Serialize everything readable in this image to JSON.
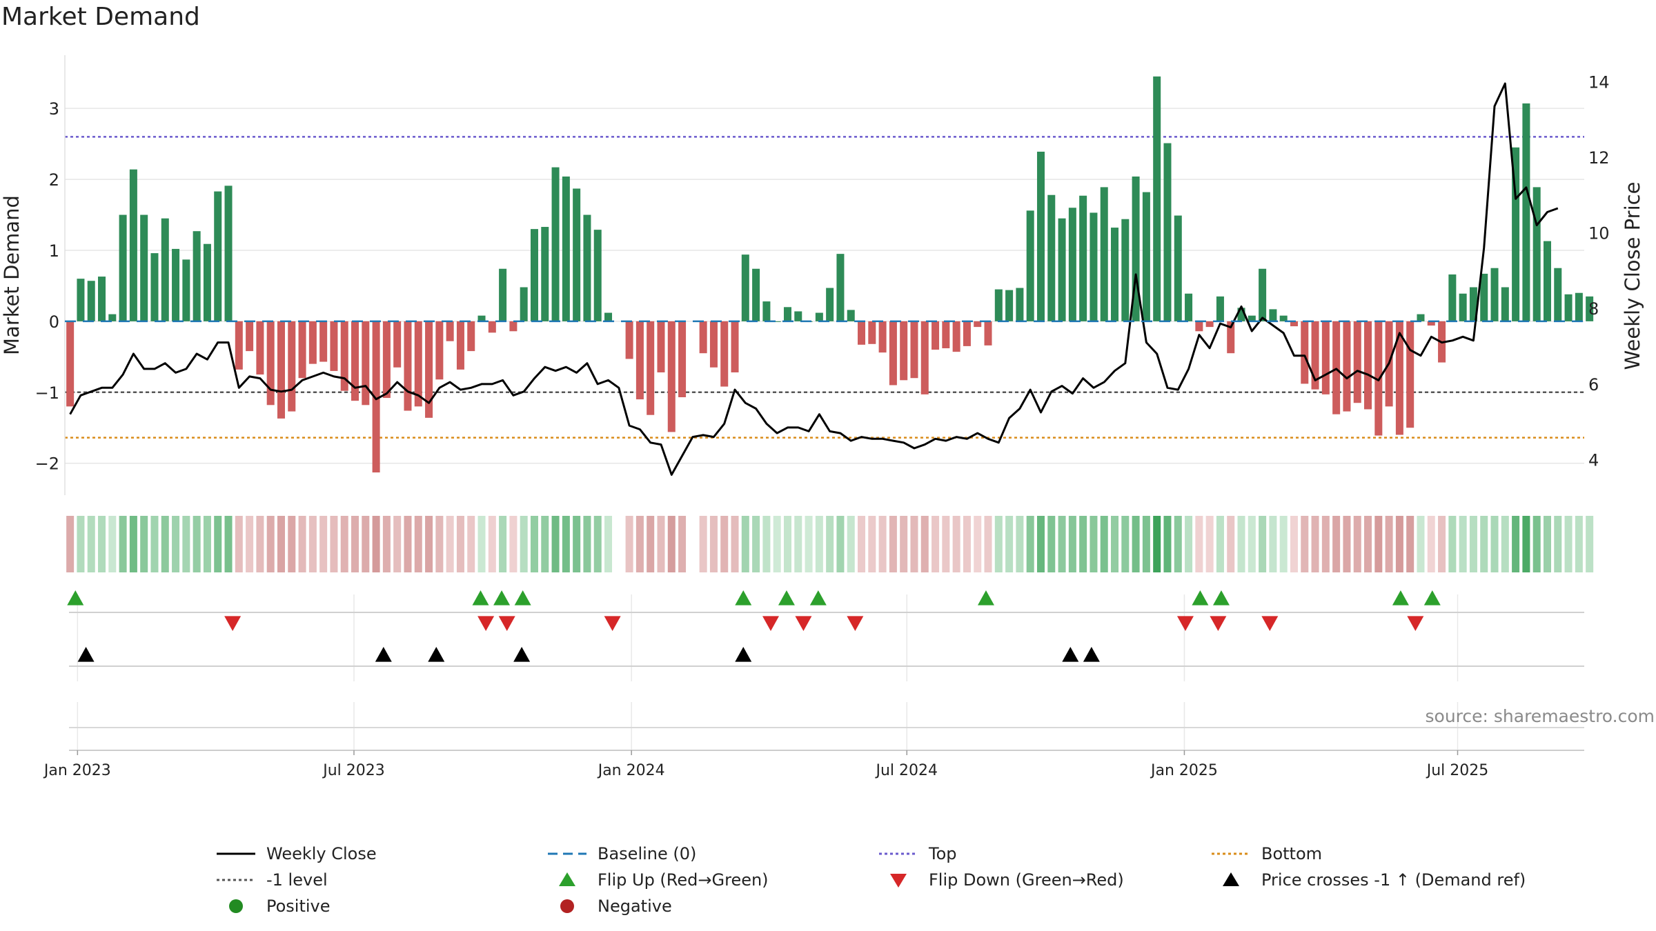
{
  "page": {
    "title": "Market Demand",
    "source": "source: sharemaestro.com"
  },
  "colors": {
    "pos_bar": "#2e8b57",
    "neg_bar": "#cd5c5c",
    "price": "#000000",
    "baseline": "#1f77b4",
    "top": "#6a5acd",
    "bottom": "#d98c1a",
    "minus1": "#555555",
    "flip_up": "#2ca02c",
    "flip_down": "#d62728",
    "cross": "#000000",
    "positive": "#228b22",
    "negative": "#b22222"
  },
  "legend": [
    {
      "label": "Weekly Close",
      "kind": "line-solid",
      "color": "#000000"
    },
    {
      "label": "Baseline (0)",
      "kind": "line-dash",
      "color": "#1f77b4"
    },
    {
      "label": "Top",
      "kind": "line-dot",
      "color": "#6a5acd"
    },
    {
      "label": "Bottom",
      "kind": "line-dot",
      "color": "#d98c1a"
    },
    {
      "label": "-1 level",
      "kind": "line-dot",
      "color": "#555555"
    },
    {
      "label": "Flip Up (Red→Green)",
      "kind": "tri-up",
      "color": "#2ca02c"
    },
    {
      "label": "Flip Down (Green→Red)",
      "kind": "tri-down",
      "color": "#d62728"
    },
    {
      "label": "Price crosses -1 ↑ (Demand ref)",
      "kind": "tri-up",
      "color": "#000000"
    },
    {
      "label": "Positive",
      "kind": "dot",
      "color": "#228b22"
    },
    {
      "label": "Negative",
      "kind": "dot",
      "color": "#b22222"
    }
  ],
  "chart_data": {
    "type": "bar",
    "title": "Market Demand",
    "ylabel": "Market Demand",
    "y2label": "Weekly Close Price",
    "ylim": [
      -2.45,
      3.75
    ],
    "y2lim": [
      3.06,
      14.7
    ],
    "yticks": [
      -2,
      -1,
      0,
      1,
      2,
      3
    ],
    "ytick_labels": [
      "−2",
      "−1",
      "0",
      "1",
      "2",
      "3"
    ],
    "y2ticks": [
      4,
      6,
      8,
      10,
      12,
      14
    ],
    "y2tick_labels": [
      "4",
      "6",
      "8",
      "10",
      "12",
      "14"
    ],
    "x_range": [
      -0.5,
      143.5
    ],
    "x_ticks": [
      0.7,
      26.9,
      53.2,
      79.3,
      105.6,
      131.5
    ],
    "x_tick_labels": [
      "Jan 2023",
      "Jul 2023",
      "Jan 2024",
      "Jul 2024",
      "Jan 2025",
      "Jul 2025"
    ],
    "levels": {
      "top": 2.6,
      "bottom": -1.64,
      "minus1": -1.0,
      "baseline": 0
    },
    "demand": [
      -1.2,
      0.6,
      0.57,
      0.63,
      0.1,
      1.5,
      2.14,
      1.5,
      0.96,
      1.45,
      1.02,
      0.87,
      1.27,
      1.09,
      1.83,
      1.91,
      -0.68,
      -0.42,
      -0.75,
      -1.18,
      -1.37,
      -1.27,
      -0.8,
      -0.6,
      -0.57,
      -0.7,
      -0.98,
      -1.12,
      -1.18,
      -2.13,
      -1.08,
      -0.65,
      -1.26,
      -1.2,
      -1.36,
      -0.82,
      -0.28,
      -0.68,
      -0.42,
      0.08,
      -0.16,
      0.74,
      -0.14,
      0.48,
      1.3,
      1.33,
      2.17,
      2.04,
      1.87,
      1.5,
      1.29,
      0.12,
      null,
      -0.53,
      -1.1,
      -1.32,
      -0.72,
      -1.56,
      -1.07,
      null,
      -0.45,
      -0.65,
      -0.92,
      -0.72,
      0.94,
      0.74,
      0.28,
      0.0,
      0.2,
      0.14,
      0.0,
      0.12,
      0.47,
      0.95,
      0.16,
      -0.33,
      -0.32,
      -0.44,
      -0.9,
      -0.83,
      -0.8,
      -1.03,
      -0.4,
      -0.38,
      -0.43,
      -0.35,
      -0.08,
      -0.34,
      0.45,
      0.44,
      0.47,
      1.56,
      2.39,
      1.78,
      1.45,
      1.6,
      1.77,
      1.53,
      1.89,
      1.32,
      1.44,
      2.04,
      1.82,
      3.45,
      2.51,
      1.49,
      0.39,
      -0.14,
      -0.08,
      0.35,
      -0.45,
      0.19,
      0.08,
      0.74,
      0.17,
      0.08,
      -0.07,
      -0.88,
      -0.96,
      -1.03,
      -1.31,
      -1.27,
      -1.15,
      -1.24,
      -1.61,
      -1.2,
      -1.6,
      -1.5,
      0.1,
      -0.06,
      -0.58,
      0.66,
      0.39,
      0.48,
      0.67,
      0.75,
      0.48,
      2.45,
      3.07,
      1.89,
      1.13,
      0.75,
      0.38,
      0.4,
      0.35
    ],
    "close": [
      5.2,
      5.7,
      5.8,
      5.9,
      5.9,
      6.25,
      6.8,
      6.4,
      6.4,
      6.55,
      6.3,
      6.4,
      6.8,
      6.65,
      7.1,
      7.1,
      5.9,
      6.2,
      6.15,
      5.85,
      5.8,
      5.85,
      6.1,
      6.2,
      6.3,
      6.2,
      6.15,
      5.9,
      5.95,
      5.6,
      5.75,
      6.05,
      5.8,
      5.7,
      5.5,
      5.9,
      6.05,
      5.85,
      5.9,
      6.0,
      6.0,
      6.1,
      5.7,
      5.8,
      6.15,
      6.45,
      6.35,
      6.45,
      6.3,
      6.55,
      6.0,
      6.1,
      5.9,
      4.9,
      4.8,
      4.45,
      4.4,
      3.6,
      4.1,
      4.6,
      4.65,
      4.6,
      4.95,
      5.85,
      5.5,
      5.35,
      4.95,
      4.7,
      4.85,
      4.85,
      4.75,
      5.2,
      4.75,
      4.7,
      4.5,
      4.6,
      4.55,
      4.55,
      4.5,
      4.45,
      4.3,
      4.4,
      4.55,
      4.5,
      4.6,
      4.55,
      4.7,
      4.55,
      4.45,
      5.1,
      5.35,
      5.85,
      5.25,
      5.8,
      5.95,
      5.75,
      6.15,
      5.9,
      6.05,
      6.35,
      6.55,
      8.9,
      7.1,
      6.8,
      5.9,
      5.85,
      6.4,
      7.3,
      6.95,
      7.6,
      7.5,
      8.05,
      7.4,
      7.75,
      7.55,
      7.35,
      6.75,
      6.75,
      6.1,
      6.25,
      6.4,
      6.15,
      6.35,
      6.25,
      6.1,
      6.55,
      7.35,
      6.9,
      6.75,
      7.25,
      7.1,
      7.15,
      7.25,
      7.15,
      9.6,
      13.35,
      13.95,
      10.9,
      11.2,
      10.2,
      10.55,
      10.65
    ],
    "status_strip": "colour per week = demand sign and strength",
    "flip_up": [
      0.5,
      38.9,
      40.9,
      42.9,
      63.8,
      67.9,
      70.9,
      86.8,
      107.1,
      109.1,
      126.1,
      129.1
    ],
    "flip_down": [
      15.4,
      39.4,
      41.4,
      51.4,
      66.4,
      69.5,
      74.4,
      105.7,
      108.8,
      113.7,
      127.5
    ],
    "price_crosses": [
      1.5,
      29.7,
      34.7,
      42.8,
      63.8,
      94.8,
      96.8
    ]
  }
}
